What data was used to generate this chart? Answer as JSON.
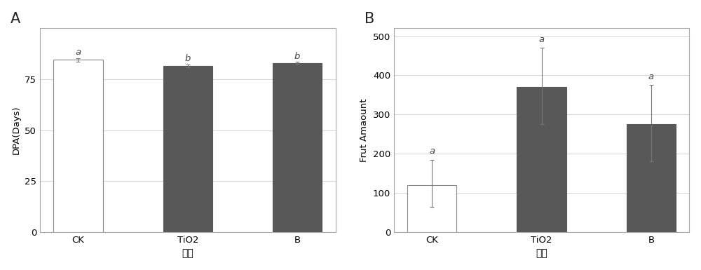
{
  "panel_A": {
    "label": "A",
    "categories": [
      "CK",
      "TiO2",
      "B"
    ],
    "xlabel": "处理",
    "ylabel": "DPA(Days)",
    "values": [
      84.5,
      81.5,
      83.0
    ],
    "errors": [
      1.0,
      0.8,
      0.5
    ],
    "sig_labels": [
      "a",
      "b",
      "b"
    ],
    "bar_colors": [
      "#ffffff",
      "#585858",
      "#585858"
    ],
    "bar_edgecolors": [
      "#888888",
      "#585858",
      "#585858"
    ],
    "ylim": [
      0,
      100
    ],
    "yticks": [
      0,
      25,
      50,
      75
    ],
    "bar_width": 0.45
  },
  "panel_B": {
    "label": "B",
    "categories": [
      "CK",
      "TiO2",
      "B"
    ],
    "xlabel": "处理",
    "ylabel": "Frut Amaount",
    "values": [
      120,
      370,
      275
    ],
    "errors_upper": [
      65,
      100,
      100
    ],
    "errors_lower": [
      55,
      95,
      95
    ],
    "sig_labels": [
      "a",
      "a",
      "a"
    ],
    "bar_colors": [
      "#ffffff",
      "#585858",
      "#585858"
    ],
    "bar_edgecolors": [
      "#888888",
      "#585858",
      "#585858"
    ],
    "ylim": [
      0,
      520
    ],
    "yticks": [
      0,
      100,
      200,
      300,
      400,
      500
    ],
    "bar_width": 0.45
  },
  "plot_bg": "#ffffff",
  "fig_bg": "#ffffff",
  "grid_color": "#d8d8d8",
  "spine_color": "#aaaaaa"
}
